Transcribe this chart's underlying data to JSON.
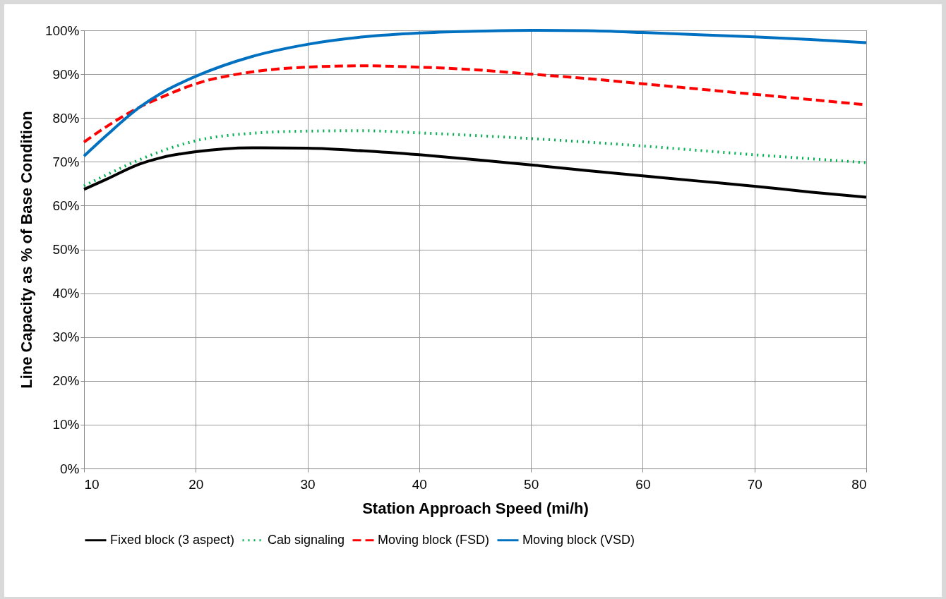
{
  "chart_data": {
    "type": "line",
    "xlabel": "Station Approach Speed (mi/h)",
    "ylabel": "Line Capacity as % of Base Condition",
    "x": [
      10,
      12,
      15,
      17,
      20,
      25,
      30,
      35,
      40,
      45,
      50,
      55,
      60,
      65,
      70,
      75,
      80
    ],
    "series": [
      {
        "name": "Fixed block (3 aspect)",
        "color": "#000000",
        "line_style": "solid",
        "values": [
          63.7,
          66,
          69.5,
          71,
          72.3,
          73.2,
          73.1,
          72.5,
          71.6,
          70.5,
          69.3,
          68,
          66.8,
          65.6,
          64.4,
          63.1,
          61.9
        ]
      },
      {
        "name": "Cab signaling",
        "color": "#00b050",
        "line_style": "dotted",
        "values": [
          64.5,
          67,
          70.5,
          72.5,
          74.8,
          76.5,
          77,
          77.1,
          76.6,
          76,
          75.3,
          74.5,
          73.6,
          72.6,
          71.6,
          70.7,
          69.8
        ]
      },
      {
        "name": "Moving block (FSD)",
        "color": "#ff0000",
        "line_style": "dashed",
        "values": [
          74.5,
          78,
          82.5,
          84.8,
          87.8,
          90.5,
          91.6,
          91.9,
          91.6,
          91,
          90,
          89,
          87.8,
          86.6,
          85.4,
          84.2,
          83
        ]
      },
      {
        "name": "Moving block (VSD)",
        "color": "#0070c0",
        "line_style": "solid",
        "values": [
          71.3,
          76,
          82.5,
          85.8,
          89.5,
          94,
          96.8,
          98.5,
          99.4,
          99.8,
          100,
          99.9,
          99.5,
          99,
          98.5,
          97.9,
          97.2
        ]
      }
    ],
    "xlim": [
      10,
      80
    ],
    "xticks": [
      10,
      20,
      30,
      40,
      50,
      60,
      70,
      80
    ],
    "ylim": [
      0,
      100
    ],
    "yticks": [
      {
        "value": 0,
        "label": "0%"
      },
      {
        "value": 10,
        "label": "10%"
      },
      {
        "value": 20,
        "label": "20%"
      },
      {
        "value": 30,
        "label": "30%"
      },
      {
        "value": 40,
        "label": "40%"
      },
      {
        "value": 50,
        "label": "50%"
      },
      {
        "value": 60,
        "label": "60%"
      },
      {
        "value": 70,
        "label": "70%"
      },
      {
        "value": 80,
        "label": "80%"
      },
      {
        "value": 90,
        "label": "90%"
      },
      {
        "value": 100,
        "label": "100%"
      }
    ],
    "grid": true,
    "legend": "bottom",
    "marker": "none"
  }
}
